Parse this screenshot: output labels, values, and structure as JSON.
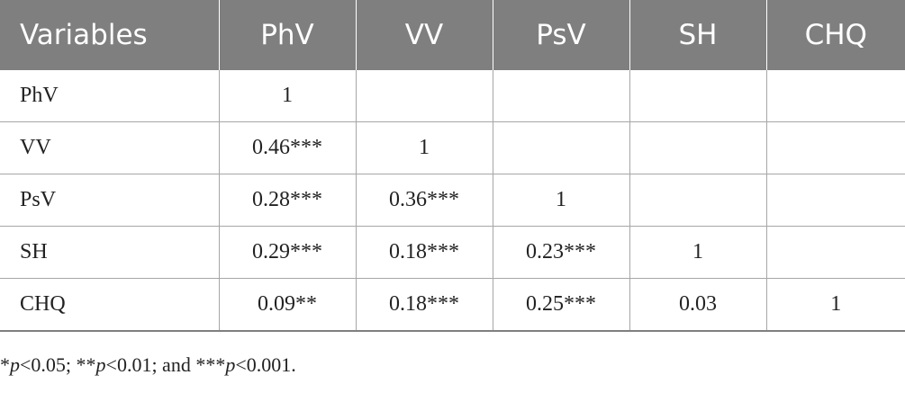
{
  "table": {
    "headers": [
      "Variables",
      "PhV",
      "VV",
      "PsV",
      "SH",
      "CHQ"
    ],
    "rows": [
      [
        "PhV",
        "1",
        "",
        "",
        "",
        ""
      ],
      [
        "VV",
        "0.46***",
        "1",
        "",
        "",
        ""
      ],
      [
        "PsV",
        "0.28***",
        "0.36***",
        "1",
        "",
        ""
      ],
      [
        "SH",
        "0.29***",
        "0.18***",
        "0.23***",
        "1",
        ""
      ],
      [
        "CHQ",
        "0.09**",
        "0.18***",
        "0.25***",
        "0.03",
        "1"
      ]
    ]
  },
  "footnote": {
    "part1_stars": "*",
    "part1_p": "p",
    "part1_rest": "<0.05; ",
    "part2_stars": "**",
    "part2_p": "p",
    "part2_rest": "<0.01; and ",
    "part3_stars": "***",
    "part3_p": "p",
    "part3_rest": "<0.001."
  }
}
